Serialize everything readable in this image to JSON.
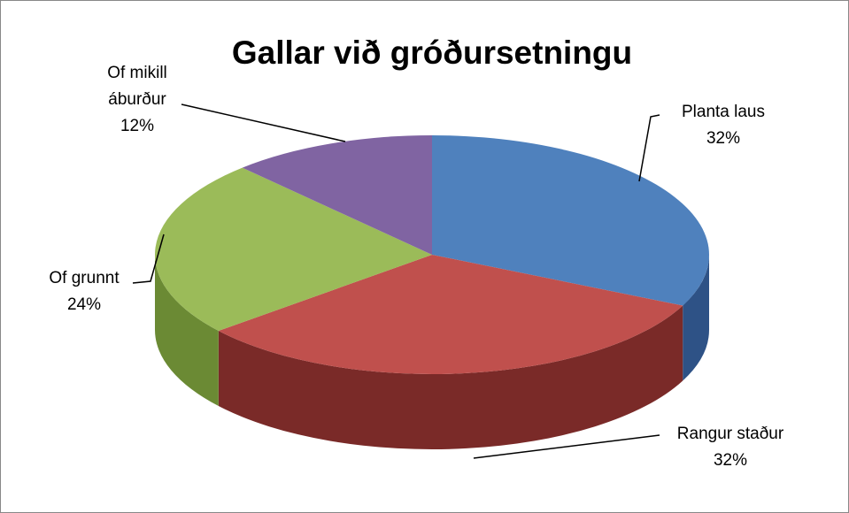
{
  "chart_data": {
    "type": "pie",
    "title": "Gallar við gróðursetningu",
    "categories": [
      "Planta laus",
      "Rangur staður",
      "Of grunnt",
      "Of mikill áburður"
    ],
    "values": [
      32,
      32,
      24,
      12
    ],
    "value_labels": [
      "32%",
      "32%",
      "24%",
      "12%"
    ],
    "colors": [
      "#4f81bd",
      "#c0504d",
      "#9bbb59",
      "#8064a2"
    ],
    "side_colors": [
      "#2e5286",
      "#7a2a28",
      "#6b8a34",
      "#54407a"
    ]
  }
}
